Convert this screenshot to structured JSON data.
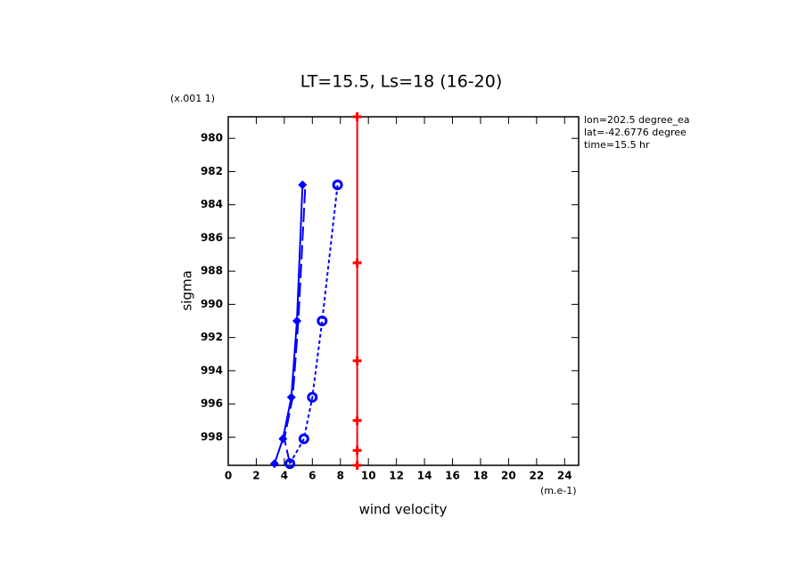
{
  "chart_data": {
    "type": "line",
    "title": "LT=15.5, Ls=18 (16-20)",
    "x_label": "wind velocity",
    "y_label": "sigma",
    "x_units": "(m.e-1)",
    "y_units": "(x.001 1)",
    "annotations": [
      "lon=202.5 degree_ea",
      "lat=-42.6776 degree",
      "time=15.5 hr"
    ],
    "y_inverted": true,
    "xlim": [
      0,
      25
    ],
    "ylim": [
      978.7,
      999.7
    ],
    "xticks": [
      0,
      2,
      4,
      6,
      8,
      10,
      12,
      14,
      16,
      18,
      20,
      22,
      24
    ],
    "yticks": [
      980,
      982,
      984,
      986,
      988,
      990,
      992,
      994,
      996,
      998
    ],
    "series": [
      {
        "color": "#0000ff",
        "dash": "solid",
        "marker": "diamond",
        "x": [
          3.3,
          3.9,
          4.5,
          4.9,
          5.3
        ],
        "values": [
          999.6,
          998.1,
          995.6,
          991.0,
          982.8
        ]
      },
      {
        "color": "#0000ff",
        "dash": "long",
        "marker": "none",
        "x": [
          4.4,
          4.0,
          4.6,
          5.0,
          5.5
        ],
        "values": [
          999.6,
          998.1,
          995.6,
          991.0,
          982.8
        ]
      },
      {
        "color": "#0000ff",
        "dash": "short",
        "marker": "circle",
        "x": [
          4.4,
          5.4,
          6.0,
          6.7,
          7.8
        ],
        "values": [
          999.6,
          998.1,
          995.6,
          991.0,
          982.8
        ]
      },
      {
        "color": "#ff0000",
        "dash": "solid",
        "marker": "plus",
        "x": [
          9.2,
          9.2,
          9.2,
          9.2,
          9.2,
          9.2
        ],
        "values": [
          978.7,
          987.5,
          993.4,
          997.0,
          998.8,
          999.7
        ]
      }
    ]
  }
}
